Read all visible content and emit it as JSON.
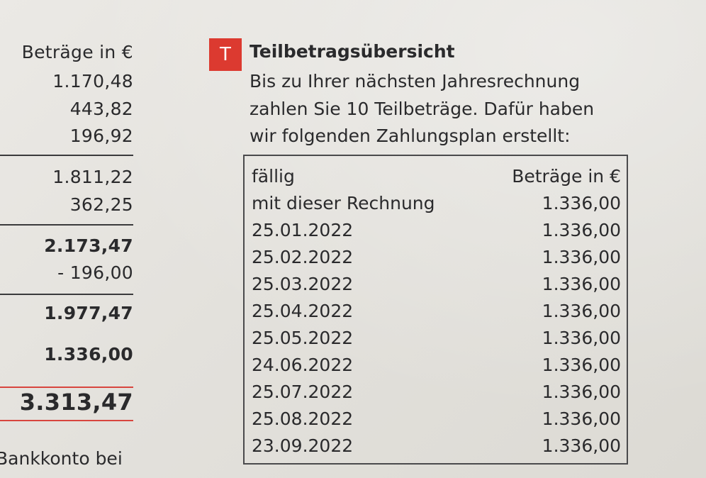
{
  "left": {
    "header": "Beträge in €",
    "values": [
      "1.170,48",
      "443,82",
      "196,92"
    ],
    "subtotal_1": "1.811,22",
    "addition": "362,25",
    "subtotal_2": "2.173,47",
    "deduction": "- 196,00",
    "subtotal_3": "1.977,47",
    "installment": "1.336,00",
    "total": "3.313,47",
    "bank_text": "Bankkonto bei"
  },
  "section": {
    "badge": "T",
    "title": "Teilbetragsübersicht",
    "intro_lines": [
      "Bis zu Ihrer nächsten Jahresrechnung",
      "zahlen Sie 10 Teilbeträge. Dafür haben",
      "wir folgenden Zahlungsplan erstellt:"
    ]
  },
  "plan": {
    "header_due": "fällig",
    "header_amount": "Beträge in €",
    "rows": [
      {
        "due": "mit dieser Rechnung",
        "amount": "1.336,00"
      },
      {
        "due": "25.01.2022",
        "amount": "1.336,00"
      },
      {
        "due": "25.02.2022",
        "amount": "1.336,00"
      },
      {
        "due": "25.03.2022",
        "amount": "1.336,00"
      },
      {
        "due": "25.04.2022",
        "amount": "1.336,00"
      },
      {
        "due": "25.05.2022",
        "amount": "1.336,00"
      },
      {
        "due": "24.06.2022",
        "amount": "1.336,00"
      },
      {
        "due": "25.07.2022",
        "amount": "1.336,00"
      },
      {
        "due": "25.08.2022",
        "amount": "1.336,00"
      },
      {
        "due": "23.09.2022",
        "amount": "1.336,00"
      }
    ]
  },
  "colors": {
    "accent_red": "#dc3a30",
    "ink": "#2a2a2c",
    "paper": "#e6e4df"
  }
}
